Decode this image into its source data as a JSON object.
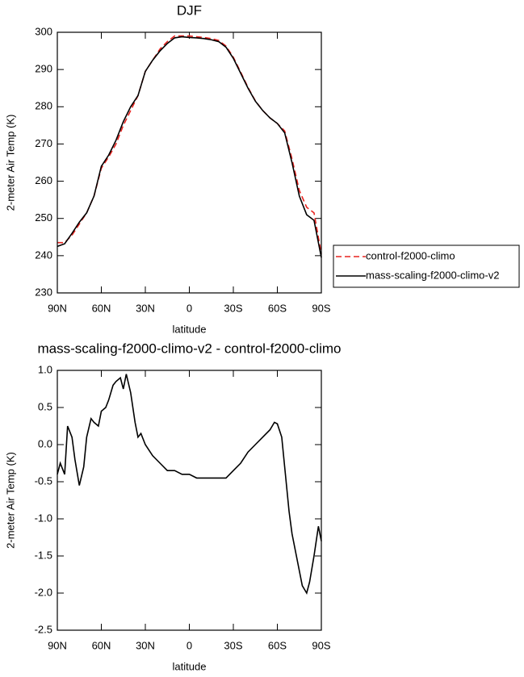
{
  "chart_data": [
    {
      "type": "line",
      "title": "DJF",
      "x_label": "latitude",
      "y_label": "2-meter Air Temp (K)",
      "x": [
        90,
        85,
        80,
        75,
        70,
        65,
        60,
        55,
        50,
        45,
        40,
        35,
        30,
        25,
        20,
        15,
        10,
        5,
        0,
        -5,
        -10,
        -15,
        -20,
        -25,
        -30,
        -35,
        -40,
        -45,
        -50,
        -55,
        -60,
        -65,
        -70,
        -75,
        -80,
        -85,
        -90
      ],
      "series": [
        {
          "name": "control-f2000-climo",
          "color": "#e8231f",
          "line_style": "dashed",
          "values": [
            243.5,
            243.5,
            245.5,
            248.5,
            251.5,
            256,
            263.5,
            266.5,
            270,
            275,
            279,
            283,
            289.5,
            292.5,
            295.5,
            297.5,
            299,
            299,
            299,
            298.8,
            298.6,
            298.3,
            297.8,
            296.3,
            293.3,
            289.3,
            285.2,
            281.6,
            279,
            277,
            275.5,
            273.5,
            266,
            257.5,
            253,
            251.5,
            240.5
          ]
        },
        {
          "name": "mass-scaling-f2000-climo-v2",
          "color": "#000000",
          "line_style": "solid",
          "values": [
            242.5,
            243.2,
            246,
            249,
            251.5,
            256,
            264,
            267,
            271,
            276,
            280,
            283,
            289.5,
            292.5,
            295,
            297,
            298.5,
            298.8,
            298.6,
            298.5,
            298.3,
            298,
            297.5,
            296,
            293,
            289,
            285,
            281.5,
            279,
            277,
            275.5,
            273,
            265,
            256,
            251,
            249.5,
            239.5
          ]
        }
      ],
      "xlim": [
        90,
        -90
      ],
      "xticks": [
        {
          "value": 90,
          "label": "90N"
        },
        {
          "value": 60,
          "label": "60N"
        },
        {
          "value": 30,
          "label": "30N"
        },
        0,
        {
          "value": -30,
          "label": "30S"
        },
        {
          "value": -60,
          "label": "60S"
        },
        {
          "value": -90,
          "label": "90S"
        }
      ],
      "ylim": [
        230,
        300
      ],
      "yticks": [
        230,
        240,
        250,
        260,
        270,
        280,
        290,
        300
      ],
      "legend": "outside-right",
      "grid": false
    },
    {
      "type": "line",
      "title": "mass-scaling-f2000-climo-v2 - control-f2000-climo",
      "x_label": "latitude",
      "y_label": "2-meter Air Temp (K)",
      "x": [
        90,
        88,
        85,
        83,
        80,
        78,
        75,
        72,
        70,
        67,
        65,
        62,
        60,
        57,
        55,
        52,
        50,
        47,
        45,
        43,
        40,
        37,
        35,
        33,
        30,
        25,
        20,
        15,
        10,
        5,
        0,
        -5,
        -10,
        -15,
        -20,
        -25,
        -30,
        -35,
        -40,
        -45,
        -50,
        -55,
        -58,
        -60,
        -63,
        -65,
        -68,
        -70,
        -73,
        -75,
        -77,
        -80,
        -82,
        -85,
        -88,
        -90
      ],
      "values": [
        -0.4,
        -0.25,
        -0.4,
        0.25,
        0.1,
        -0.2,
        -0.55,
        -0.3,
        0.1,
        0.35,
        0.3,
        0.25,
        0.45,
        0.5,
        0.6,
        0.8,
        0.85,
        0.9,
        0.75,
        0.95,
        0.7,
        0.3,
        0.1,
        0.15,
        0.0,
        -0.15,
        -0.25,
        -0.35,
        -0.35,
        -0.4,
        -0.4,
        -0.45,
        -0.45,
        -0.45,
        -0.45,
        -0.45,
        -0.35,
        -0.25,
        -0.1,
        0.0,
        0.1,
        0.2,
        0.3,
        0.28,
        0.1,
        -0.3,
        -0.9,
        -1.2,
        -1.5,
        -1.7,
        -1.9,
        -2.0,
        -1.85,
        -1.5,
        -1.1,
        -1.3
      ],
      "color": "#000000",
      "xlim": [
        90,
        -90
      ],
      "xticks": [
        {
          "value": 90,
          "label": "90N"
        },
        {
          "value": 60,
          "label": "60N"
        },
        {
          "value": 30,
          "label": "30N"
        },
        0,
        {
          "value": -30,
          "label": "30S"
        },
        {
          "value": -60,
          "label": "60S"
        },
        {
          "value": -90,
          "label": "90S"
        }
      ],
      "ylim": [
        -2.5,
        1.0
      ],
      "yticks": [
        -2.5,
        {
          "value": -2.0,
          "label": "-2.0"
        },
        -1.5,
        {
          "value": -1.0,
          "label": "-1.0"
        },
        -0.5,
        {
          "value": 0.0,
          "label": "0.0"
        },
        0.5,
        {
          "value": 1.0,
          "label": "1.0"
        }
      ],
      "grid": false
    }
  ]
}
